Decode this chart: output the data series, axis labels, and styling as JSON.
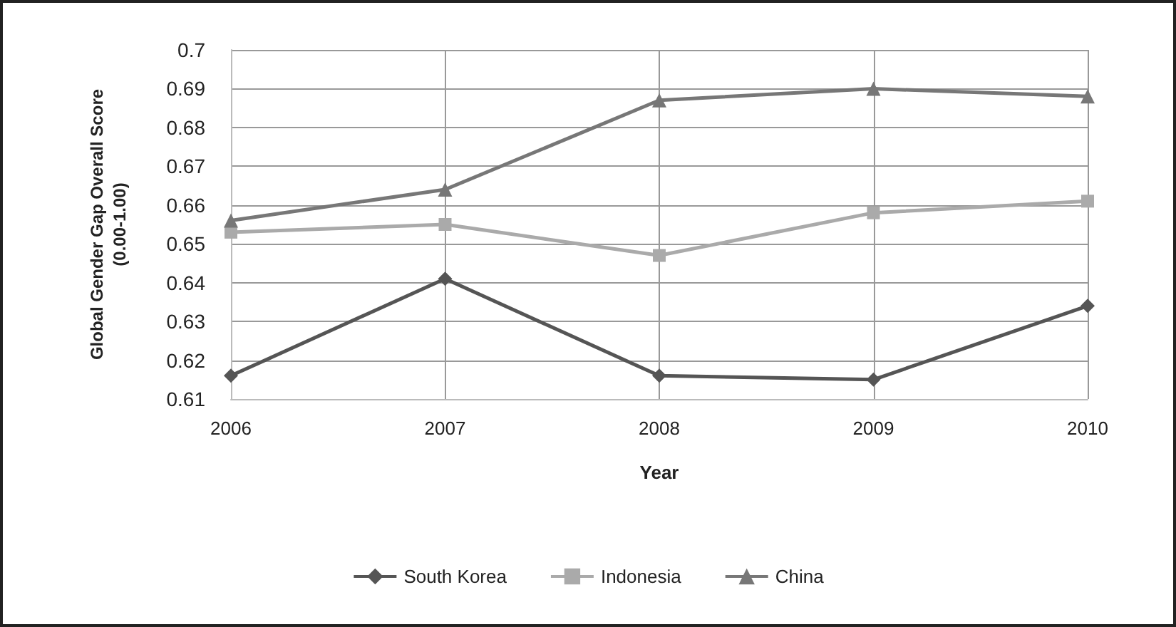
{
  "chart_data": {
    "type": "line",
    "xlabel": "Year",
    "ylabel": "Global Gender Gap Overall Score\n(0.00-1.00)",
    "categories": [
      "2006",
      "2007",
      "2008",
      "2009",
      "2010"
    ],
    "series": [
      {
        "name": "South Korea",
        "color": "#555555",
        "marker": "diamond",
        "values": [
          0.616,
          0.641,
          0.616,
          0.615,
          0.634
        ]
      },
      {
        "name": "Indonesia",
        "color": "#aaaaaa",
        "marker": "square",
        "values": [
          0.653,
          0.655,
          0.647,
          0.658,
          0.661
        ]
      },
      {
        "name": "China",
        "color": "#777777",
        "marker": "triangle",
        "values": [
          0.656,
          0.664,
          0.687,
          0.69,
          0.688
        ]
      }
    ],
    "ylim": [
      0.61,
      0.7
    ],
    "yticks": [
      0.61,
      0.62,
      0.63,
      0.64,
      0.65,
      0.66,
      0.67,
      0.68,
      0.69,
      0.7
    ],
    "grid": true,
    "legend": "bottom"
  }
}
